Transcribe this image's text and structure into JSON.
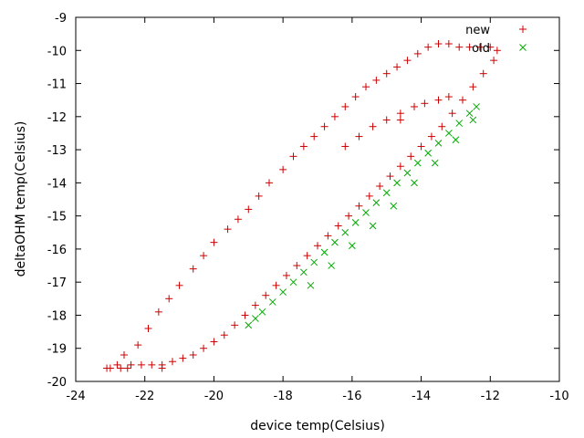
{
  "chart_data": {
    "type": "scatter",
    "xlabel": "device temp(Celsius)",
    "ylabel": "deltaOHM temp(Celsius)",
    "xlim": [
      -24,
      -10
    ],
    "ylim": [
      -20,
      -9
    ],
    "xticks": [
      -24,
      -22,
      -20,
      -18,
      -16,
      -14,
      -12,
      -10
    ],
    "yticks": [
      -20,
      -19,
      -18,
      -17,
      -16,
      -15,
      -14,
      -13,
      -12,
      -11,
      -10,
      -9
    ],
    "xtick_labels": [
      "-24",
      "-22",
      "-20",
      "-18",
      "-16",
      "-14",
      "-12",
      "-10"
    ],
    "ytick_labels": [
      "-20",
      "-19",
      "-18",
      "-17",
      "-16",
      "-15",
      "-14",
      "-13",
      "-12",
      "-11",
      "-10",
      "-9"
    ],
    "legend_position": "top-right",
    "series": [
      {
        "name": "new",
        "marker": "plus",
        "color": "#cc0000",
        "x": [
          -23.1,
          -22.8,
          -22.6,
          -22.2,
          -21.9,
          -21.6,
          -21.3,
          -21.0,
          -20.6,
          -20.3,
          -20.0,
          -19.6,
          -19.3,
          -19.0,
          -18.7,
          -18.4,
          -18.0,
          -17.7,
          -17.4,
          -17.1,
          -16.8,
          -16.5,
          -16.2,
          -15.9,
          -15.6,
          -15.3,
          -15.0,
          -14.7,
          -14.4,
          -14.1,
          -13.8,
          -13.5,
          -13.2,
          -12.9,
          -12.6,
          -12.3,
          -12.0,
          -11.8,
          -11.9,
          -12.2,
          -12.5,
          -12.8,
          -13.1,
          -13.4,
          -13.7,
          -14.0,
          -14.3,
          -14.6,
          -14.9,
          -15.2,
          -15.5,
          -15.8,
          -16.1,
          -16.4,
          -16.7,
          -17.0,
          -17.3,
          -17.6,
          -17.9,
          -18.2,
          -18.5,
          -18.8,
          -19.1,
          -19.4,
          -19.7,
          -20.0,
          -20.3,
          -20.6,
          -20.9,
          -21.2,
          -21.5,
          -21.8,
          -22.1,
          -22.4,
          -22.7,
          -23.0,
          -22.5,
          -21.5,
          -16.2,
          -15.8,
          -15.4,
          -15.0,
          -14.6,
          -14.2,
          -13.9,
          -13.5,
          -13.2,
          -14.6
        ],
        "y": [
          -19.6,
          -19.5,
          -19.2,
          -18.9,
          -18.4,
          -17.9,
          -17.5,
          -17.1,
          -16.6,
          -16.2,
          -15.8,
          -15.4,
          -15.1,
          -14.8,
          -14.4,
          -14.0,
          -13.6,
          -13.2,
          -12.9,
          -12.6,
          -12.3,
          -12.0,
          -11.7,
          -11.4,
          -11.1,
          -10.9,
          -10.7,
          -10.5,
          -10.3,
          -10.1,
          -9.9,
          -9.8,
          -9.8,
          -9.9,
          -9.9,
          -9.9,
          -9.9,
          -10.0,
          -10.3,
          -10.7,
          -11.1,
          -11.5,
          -11.9,
          -12.3,
          -12.6,
          -12.9,
          -13.2,
          -13.5,
          -13.8,
          -14.1,
          -14.4,
          -14.7,
          -15.0,
          -15.3,
          -15.6,
          -15.9,
          -16.2,
          -16.5,
          -16.8,
          -17.1,
          -17.4,
          -17.7,
          -18.0,
          -18.3,
          -18.6,
          -18.8,
          -19.0,
          -19.2,
          -19.3,
          -19.4,
          -19.5,
          -19.5,
          -19.5,
          -19.5,
          -19.6,
          -19.6,
          -19.6,
          -19.6,
          -12.9,
          -12.6,
          -12.3,
          -12.1,
          -11.9,
          -11.7,
          -11.6,
          -11.5,
          -11.4,
          -12.1
        ]
      },
      {
        "name": "old",
        "marker": "cross",
        "color": "#00aa00",
        "x": [
          -19.0,
          -18.8,
          -18.6,
          -18.3,
          -18.0,
          -17.7,
          -17.4,
          -17.1,
          -16.8,
          -16.5,
          -16.2,
          -15.9,
          -15.6,
          -15.3,
          -15.0,
          -14.7,
          -14.4,
          -14.1,
          -13.8,
          -13.5,
          -13.2,
          -12.9,
          -12.6,
          -12.4,
          -16.0,
          -15.4,
          -14.8,
          -14.2,
          -13.6,
          -13.0,
          -12.5,
          -17.2,
          -16.6
        ],
        "y": [
          -18.3,
          -18.1,
          -17.9,
          -17.6,
          -17.3,
          -17.0,
          -16.7,
          -16.4,
          -16.1,
          -15.8,
          -15.5,
          -15.2,
          -14.9,
          -14.6,
          -14.3,
          -14.0,
          -13.7,
          -13.4,
          -13.1,
          -12.8,
          -12.5,
          -12.2,
          -11.9,
          -11.7,
          -15.9,
          -15.3,
          -14.7,
          -14.0,
          -13.4,
          -12.7,
          -12.1,
          -17.1,
          -16.5
        ]
      }
    ]
  }
}
